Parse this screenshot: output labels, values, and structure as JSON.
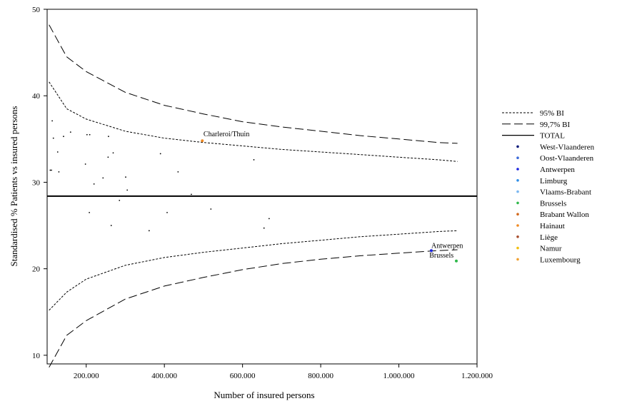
{
  "chart_data": {
    "type": "scatter",
    "xlabel": "Number of insured persons",
    "ylabel": "Standardised % Patients vs insured persons",
    "xlim": [
      100000,
      1200000
    ],
    "ylim": [
      9,
      50
    ],
    "x_ticks": [
      200000,
      400000,
      600000,
      800000,
      1000000,
      1200000
    ],
    "x_tick_labels": [
      "200.000",
      "400.000",
      "600.000",
      "800.000",
      "1.000.000",
      "1.200.000"
    ],
    "y_ticks": [
      10,
      20,
      30,
      40,
      50
    ],
    "y_tick_labels": [
      "10",
      "20",
      "30",
      "40",
      "50"
    ],
    "grid": false,
    "legend_position": "right",
    "total": {
      "name": "TOTAL",
      "value": 28.4
    },
    "limits": [
      {
        "name": "95% BI",
        "style": "dotted",
        "x": [
          105000,
          150000,
          200000,
          300000,
          400000,
          500000,
          600000,
          700000,
          800000,
          900000,
          1000000,
          1100000,
          1150000
        ],
        "upper": [
          41.6,
          38.5,
          37.3,
          35.9,
          35.1,
          34.6,
          34.2,
          33.8,
          33.5,
          33.2,
          32.9,
          32.6,
          32.4
        ],
        "lower": [
          15.2,
          17.3,
          18.8,
          20.4,
          21.3,
          21.9,
          22.4,
          22.9,
          23.3,
          23.7,
          24.0,
          24.3,
          24.4
        ]
      },
      {
        "name": "99,7% BI",
        "style": "dashed",
        "x": [
          105000,
          150000,
          200000,
          300000,
          400000,
          500000,
          600000,
          700000,
          800000,
          900000,
          1000000,
          1100000,
          1150000
        ],
        "upper": [
          48.2,
          44.5,
          42.8,
          40.4,
          38.9,
          37.9,
          37.0,
          36.4,
          35.9,
          35.4,
          35.0,
          34.6,
          34.5
        ],
        "lower": [
          8.6,
          12.3,
          14.0,
          16.5,
          18.0,
          19.0,
          19.9,
          20.6,
          21.1,
          21.5,
          21.8,
          22.1,
          22.2
        ]
      }
    ],
    "series": [
      {
        "name": "West-Vlaanderen",
        "color": "#0a1a7a",
        "points": []
      },
      {
        "name": "Oost-Vlaanderen",
        "color": "#3d6bd9",
        "points": []
      },
      {
        "name": "Antwerpen",
        "color": "#1a23e0",
        "points": [
          [
            1083000,
            22.1
          ]
        ]
      },
      {
        "name": "Limburg",
        "color": "#2f8fe8",
        "points": []
      },
      {
        "name": "Vlaams-Brabant",
        "color": "#7ab7f0",
        "points": []
      },
      {
        "name": "Brussels",
        "color": "#2fb84a",
        "points": [
          [
            1147000,
            20.9
          ]
        ]
      },
      {
        "name": "Brabant Wallon",
        "color": "#d2691e",
        "points": []
      },
      {
        "name": "Hainaut",
        "color": "#f08a24",
        "points": [
          [
            497000,
            34.8
          ]
        ]
      },
      {
        "name": "Liège",
        "color": "#a84e2f",
        "points": []
      },
      {
        "name": "Namur",
        "color": "#f2c010",
        "points": []
      },
      {
        "name": "Luxembourg",
        "color": "#f0a030",
        "points": []
      }
    ],
    "other_points": [
      [
        111000,
        31.4
      ],
      [
        113000,
        37.1
      ],
      [
        116000,
        35.1
      ],
      [
        127000,
        33.5
      ],
      [
        130000,
        31.2
      ],
      [
        142000,
        35.3
      ],
      [
        160000,
        35.8
      ],
      [
        198000,
        32.1
      ],
      [
        202000,
        35.5
      ],
      [
        209000,
        35.5
      ],
      [
        208000,
        26.5
      ],
      [
        220000,
        29.8
      ],
      [
        243000,
        30.5
      ],
      [
        256000,
        32.9
      ],
      [
        257000,
        35.3
      ],
      [
        264000,
        25.0
      ],
      [
        269000,
        33.4
      ],
      [
        285000,
        27.9
      ],
      [
        301000,
        30.6
      ],
      [
        305000,
        29.1
      ],
      [
        361000,
        24.4
      ],
      [
        390000,
        33.3
      ],
      [
        407000,
        26.5
      ],
      [
        435000,
        31.2
      ],
      [
        469000,
        28.6
      ],
      [
        519000,
        26.9
      ],
      [
        629000,
        32.6
      ],
      [
        655000,
        24.7
      ],
      [
        668000,
        25.8
      ],
      [
        108000,
        31.4
      ]
    ],
    "annotations": [
      {
        "text": "Charleroi/Thuin",
        "x": 500000,
        "y": 35.3
      },
      {
        "text": "Antwerpen",
        "x": 1083000,
        "y": 22.4
      },
      {
        "text": "Brussels",
        "x": 1078000,
        "y": 21.3
      }
    ]
  }
}
